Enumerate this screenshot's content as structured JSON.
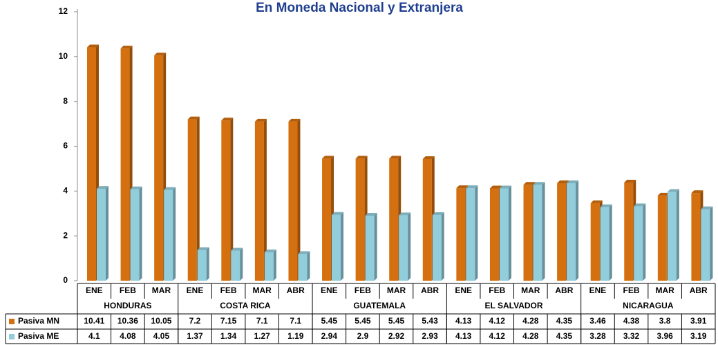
{
  "chart_data": {
    "type": "bar3d",
    "title": "En Moneda Nacional y Extranjera",
    "groups": [
      {
        "name": "HONDURAS",
        "categories": [
          "ENE",
          "FEB",
          "MAR"
        ]
      },
      {
        "name": "COSTA RICA",
        "categories": [
          "ENE",
          "FEB",
          "MAR",
          "ABR"
        ]
      },
      {
        "name": "GUATEMALA",
        "categories": [
          "ENE",
          "FEB",
          "MAR",
          "ABR"
        ]
      },
      {
        "name": "EL SALVADOR",
        "categories": [
          "ENE",
          "FEB",
          "MAR",
          "ABR"
        ]
      },
      {
        "name": "NICARAGUA",
        "categories": [
          "ENE",
          "FEB",
          "MAR",
          "ABR"
        ]
      }
    ],
    "series": [
      {
        "name": "Pasiva MN",
        "color": "#d4700f",
        "values": [
          10.41,
          10.36,
          10.05,
          7.2,
          7.15,
          7.1,
          7.1,
          5.45,
          5.45,
          5.45,
          5.43,
          4.13,
          4.12,
          4.28,
          4.35,
          3.46,
          4.38,
          3.8,
          3.91
        ]
      },
      {
        "name": "Pasiva ME",
        "color": "#92cddc",
        "values": [
          4.1,
          4.08,
          4.05,
          1.37,
          1.34,
          1.27,
          1.19,
          2.94,
          2.9,
          2.92,
          2.93,
          4.13,
          4.12,
          4.28,
          4.35,
          3.28,
          3.32,
          3.96,
          3.19
        ]
      }
    ],
    "ylim": [
      0,
      12
    ],
    "yticks": [
      0,
      2,
      4,
      6,
      8,
      10,
      12
    ]
  }
}
